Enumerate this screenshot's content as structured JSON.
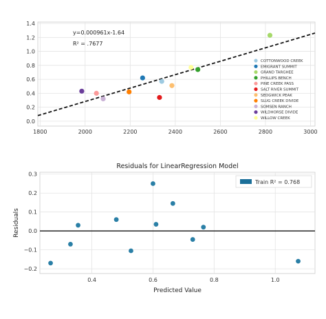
{
  "chart_data": [
    {
      "type": "scatter",
      "title": "",
      "xlabel": "",
      "ylabel": "",
      "xlim": [
        1790,
        3020
      ],
      "ylim": [
        -0.07,
        1.42
      ],
      "x_ticks": [
        "1800",
        "2000",
        "2200",
        "2400",
        "2600",
        "2800",
        "3000"
      ],
      "y_ticks": [
        "0.0",
        "0.2",
        "0.4",
        "0.6",
        "0.8",
        "1.0",
        "1.2",
        "1.4"
      ],
      "grid": true,
      "legend_position": "right",
      "annotations": [
        "y=0.000961x-1.64",
        "R² = .7677"
      ],
      "fit_line": {
        "slope": 0.000961,
        "intercept": -1.64,
        "style": "dashed",
        "color": "#111111"
      },
      "series": [
        {
          "name": "COTTONWOOD CREEK",
          "color": "#9ecae1",
          "x": [
            2340
          ],
          "y": [
            0.57
          ]
        },
        {
          "name": "EMIGRANT SUMMIT",
          "color": "#1f78b4",
          "x": [
            2255
          ],
          "y": [
            0.62
          ]
        },
        {
          "name": "GRAND TARGHEE",
          "color": "#a6d96a",
          "x": [
            2820
          ],
          "y": [
            1.23
          ]
        },
        {
          "name": "PHILLIPS BENCH",
          "color": "#33a02c",
          "x": [
            2500
          ],
          "y": [
            0.74
          ]
        },
        {
          "name": "PINE CREEK PASS",
          "color": "#fb9a99",
          "x": [
            2050
          ],
          "y": [
            0.4
          ]
        },
        {
          "name": "SALT RIVER SUMMIT",
          "color": "#e31a1c",
          "x": [
            2330
          ],
          "y": [
            0.34
          ]
        },
        {
          "name": "SEDGWICK PEAK",
          "color": "#fdbf6f",
          "x": [
            2385
          ],
          "y": [
            0.51
          ]
        },
        {
          "name": "SLUG CREEK DIVIDE",
          "color": "#ff7f00",
          "x": [
            2195
          ],
          "y": [
            0.42
          ]
        },
        {
          "name": "SOMSEN RANCH",
          "color": "#cab2d6",
          "x": [
            2080
          ],
          "y": [
            0.32
          ]
        },
        {
          "name": "WILDHORSE DIVIDE",
          "color": "#6a3d9a",
          "x": [
            1985
          ],
          "y": [
            0.43
          ]
        },
        {
          "name": "WILLOW CREEK",
          "color": "#ffff99",
          "x": [
            2470
          ],
          "y": [
            0.77
          ]
        }
      ]
    },
    {
      "type": "scatter",
      "title": "Residuals for LinearRegression Model",
      "xlabel": "Predicted Value",
      "ylabel": "Residuals",
      "xlim": [
        0.23,
        1.13
      ],
      "ylim": [
        -0.225,
        0.31
      ],
      "x_ticks": [
        "0.4",
        "0.6",
        "0.8",
        "1.0"
      ],
      "y_ticks": [
        "−0.2",
        "−0.1",
        "0.0",
        "0.1",
        "0.2",
        "0.3"
      ],
      "grid": true,
      "legend_position": "top-right",
      "legend_label": "Train R² = 0.768",
      "zero_line": 0,
      "color": "#2a7fa6",
      "x": [
        0.265,
        0.33,
        0.355,
        0.48,
        0.528,
        0.6,
        0.61,
        0.665,
        0.73,
        0.765,
        1.075
      ],
      "y": [
        -0.17,
        -0.07,
        0.03,
        0.06,
        -0.105,
        0.25,
        0.035,
        0.145,
        -0.045,
        0.02,
        -0.16
      ]
    }
  ]
}
